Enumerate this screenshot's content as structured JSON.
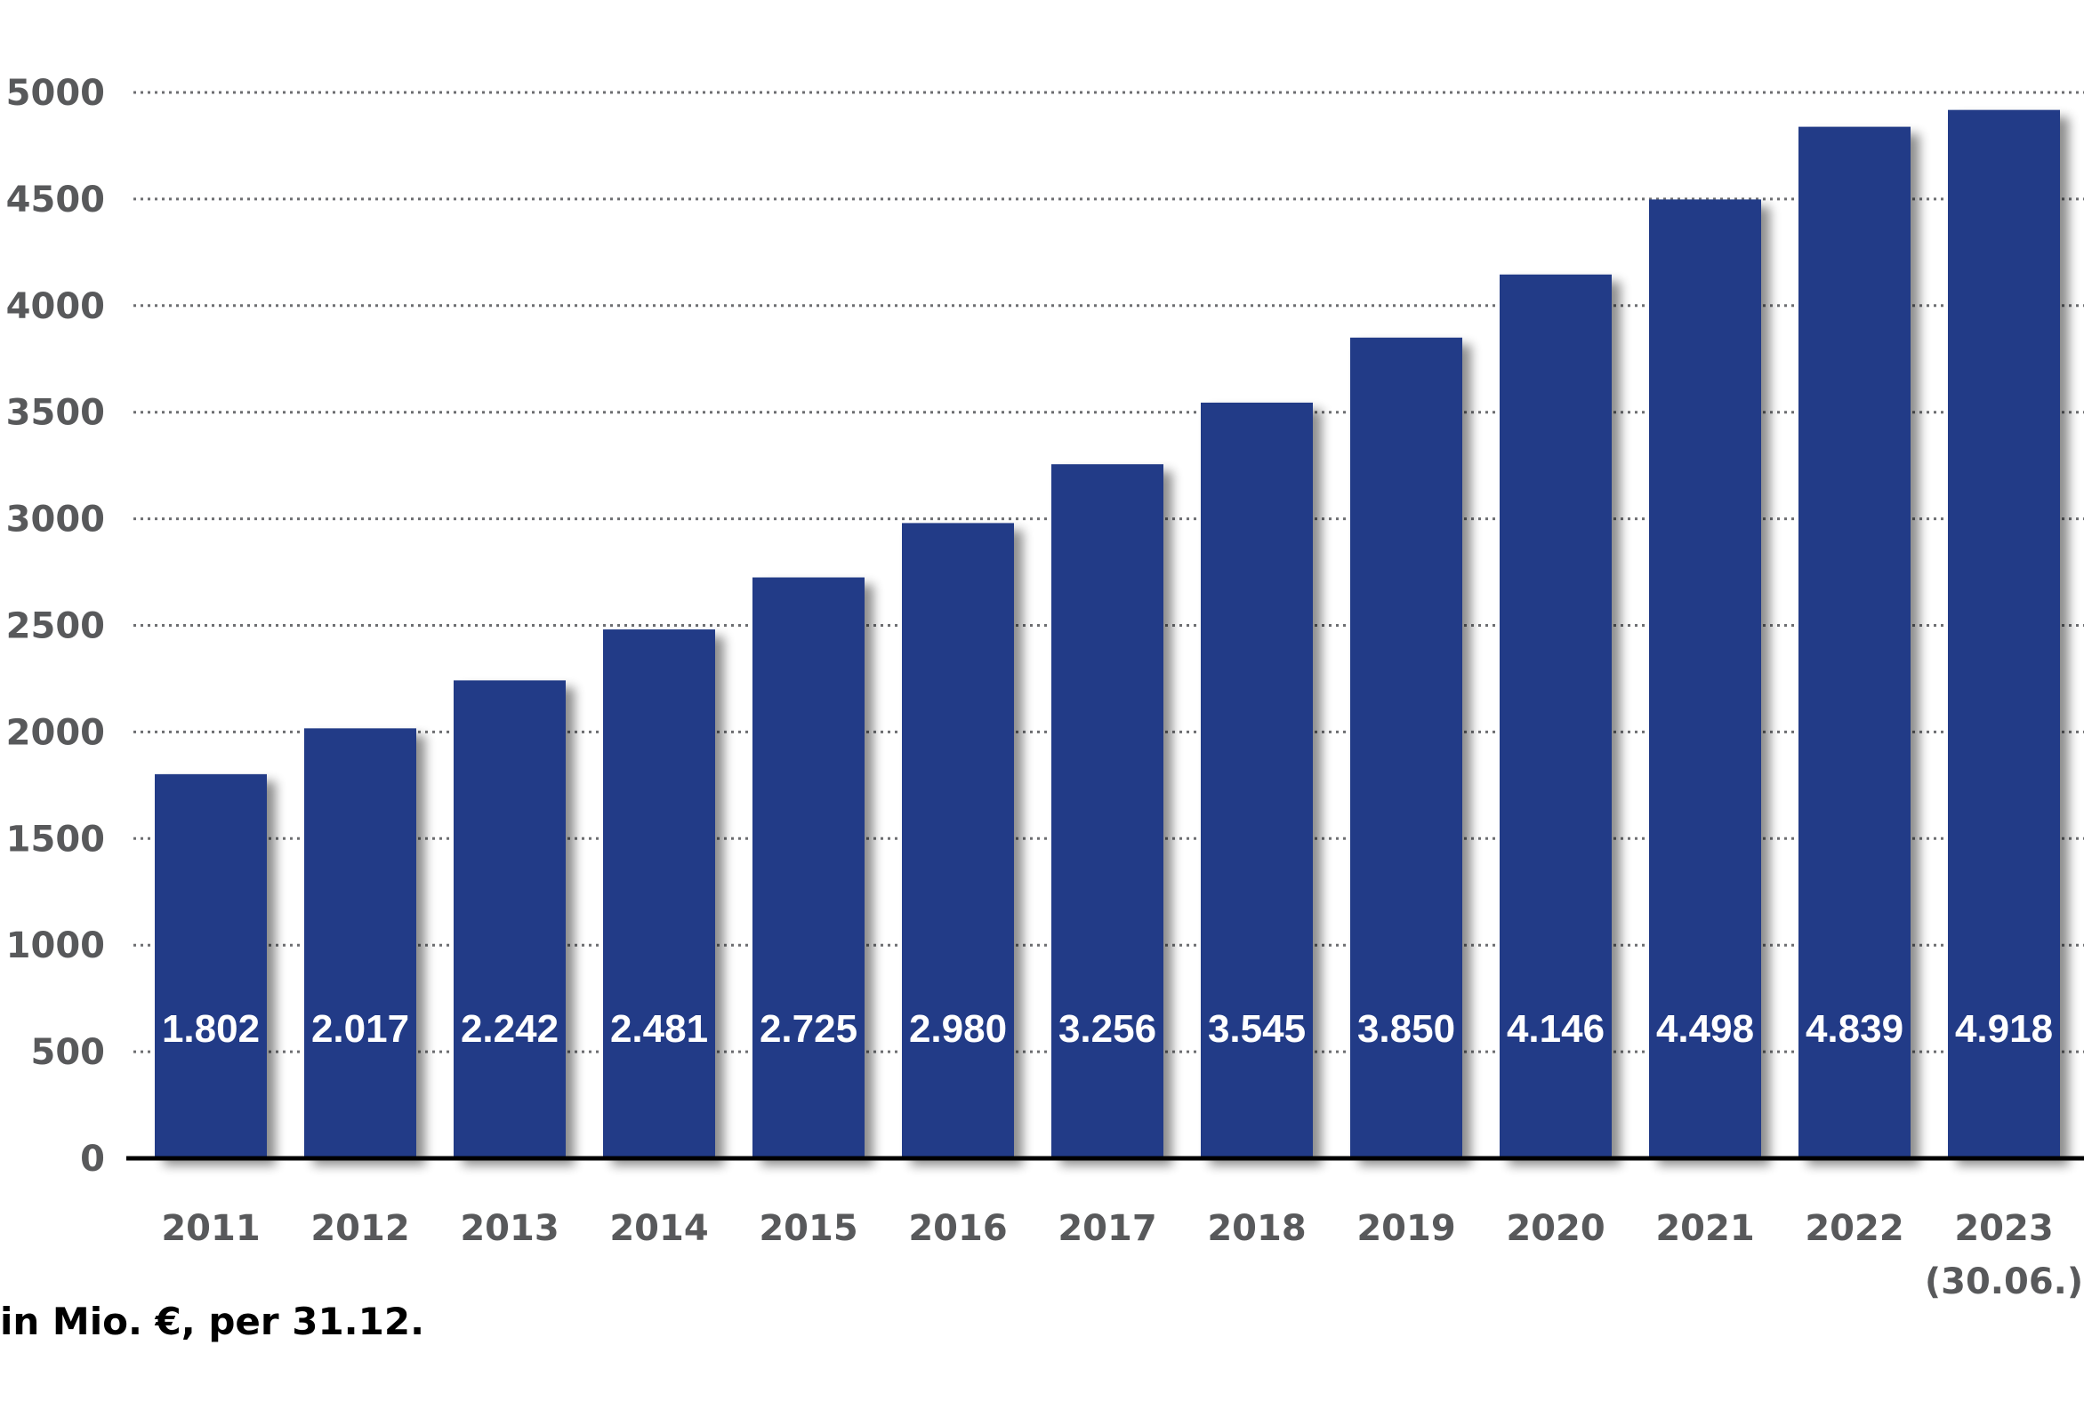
{
  "chart_data": {
    "type": "bar",
    "categories": [
      "2011",
      "2012",
      "2013",
      "2014",
      "2015",
      "2016",
      "2017",
      "2018",
      "2019",
      "2020",
      "2021",
      "2022",
      "2023"
    ],
    "category_sublabels": [
      "",
      "",
      "",
      "",
      "",
      "",
      "",
      "",
      "",
      "",
      "",
      "",
      "(30.06.)"
    ],
    "values": [
      1802,
      2017,
      2242,
      2481,
      2725,
      2980,
      3256,
      3545,
      3850,
      4146,
      4498,
      4839,
      4918
    ],
    "data_labels": [
      "1.802",
      "2.017",
      "2.242",
      "2.481",
      "2.725",
      "2.980",
      "3.256",
      "3.545",
      "3.850",
      "4.146",
      "4.498",
      "4.839",
      "4.918"
    ],
    "yticks": [
      0,
      500,
      1000,
      1500,
      2000,
      2500,
      3000,
      3500,
      4000,
      4500,
      5000
    ],
    "ylim": [
      0,
      5000
    ],
    "grid": true,
    "bar_color": "#203a87",
    "label_color": "#ffffff",
    "tick_color": "#58595b"
  },
  "footnote": "in Mio. €, per 31.12."
}
